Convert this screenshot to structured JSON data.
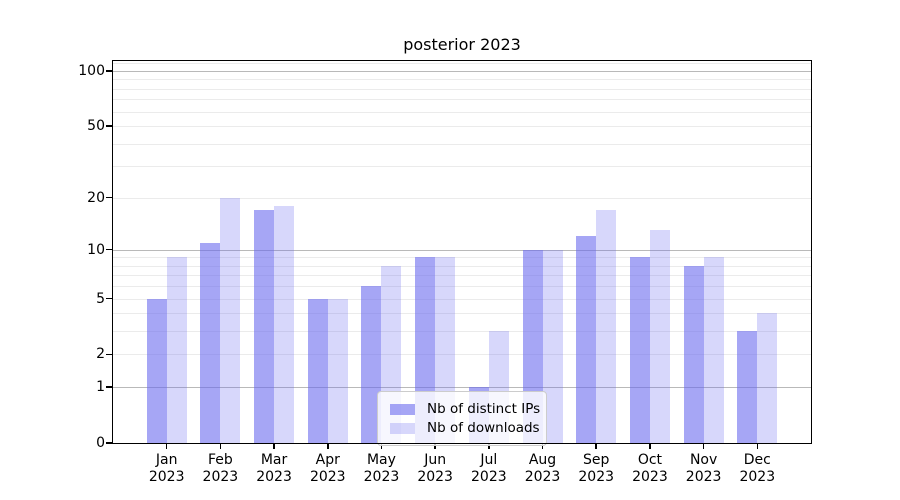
{
  "chart_data": {
    "type": "bar",
    "title": "posterior 2023",
    "categories": [
      "Jan",
      "Feb",
      "Mar",
      "Apr",
      "May",
      "Jun",
      "Jul",
      "Aug",
      "Sep",
      "Oct",
      "Nov",
      "Dec"
    ],
    "x_sub_label": "2023",
    "series": [
      {
        "name": "Nb of distinct IPs",
        "color": "rgba(102,102,238,0.58)",
        "values": [
          5,
          11,
          17,
          5,
          6,
          9,
          1,
          10,
          12,
          9,
          8,
          3
        ]
      },
      {
        "name": "Nb of downloads",
        "color": "rgba(102,102,238,0.26)",
        "values": [
          9,
          20,
          18,
          5,
          8,
          9,
          3,
          10,
          17,
          13,
          9,
          4
        ]
      }
    ],
    "yscale": "symlog",
    "ylim": [
      0,
      113.4
    ],
    "y_ticks": [
      0,
      1,
      2,
      5,
      10,
      20,
      50,
      100
    ],
    "grid_major": [
      1,
      10,
      100
    ],
    "grid_minor": [
      2,
      3,
      4,
      5,
      6,
      7,
      8,
      9,
      20,
      30,
      40,
      50,
      60,
      70,
      80,
      90,
      110
    ],
    "legend_position": "lower center",
    "xlabel": "",
    "ylabel": ""
  }
}
